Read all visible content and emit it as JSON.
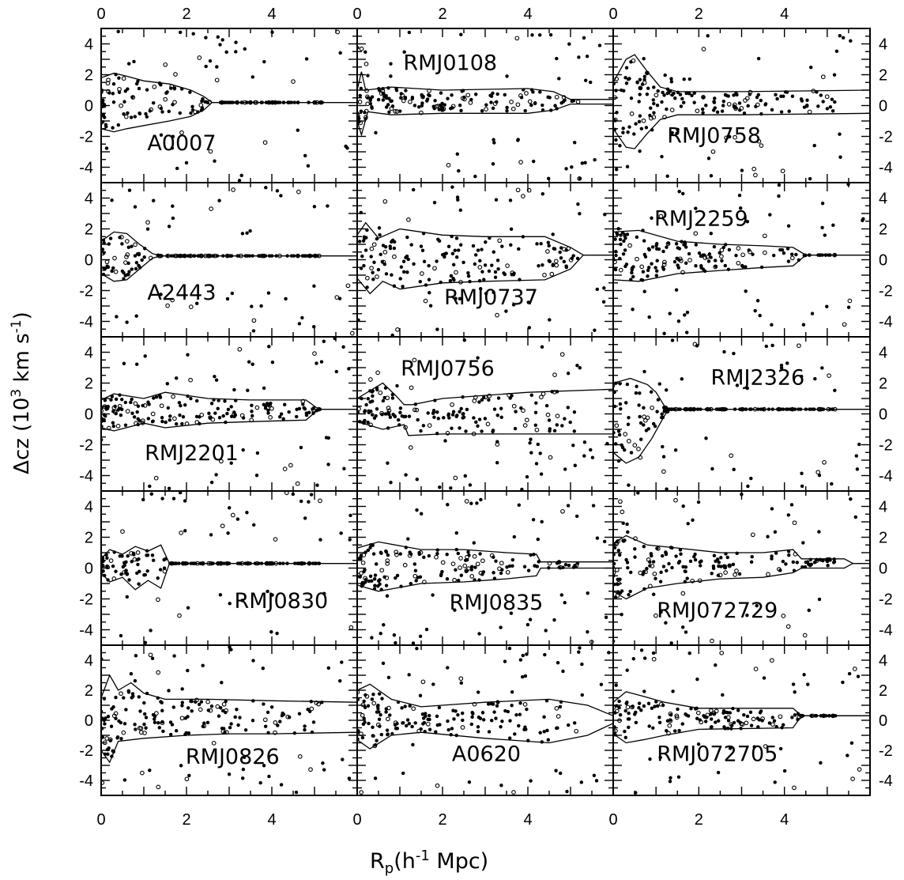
{
  "chart_data": {
    "type": "scatter",
    "layout": "5 rows x 3 columns of panels",
    "xlabel": {
      "main": "R",
      "sub": "p",
      "rest": "(h",
      "sup": "-1",
      "tail": " Mpc)"
    },
    "ylabel": {
      "main": "Δcz  (10",
      "sup1": "3",
      "mid": " km s",
      "sup2": "-1",
      "tail": ")"
    },
    "xlim": [
      0,
      6
    ],
    "ylim": [
      -5,
      5
    ],
    "x_tick_labels": [
      "0",
      "2",
      "4"
    ],
    "y_tick_labels": [
      "4",
      "2",
      "0",
      "-2",
      "-4"
    ],
    "panels": [
      {
        "name": "A0007",
        "caustic_upper": [
          [
            0,
            1.8
          ],
          [
            0.3,
            2.1
          ],
          [
            0.6,
            1.9
          ],
          [
            1,
            1.6
          ],
          [
            1.6,
            1.4
          ],
          [
            2.1,
            1.0
          ],
          [
            2.4,
            0.6
          ],
          [
            2.6,
            0.2
          ],
          [
            6,
            0.2
          ]
        ],
        "caustic_lower": [
          [
            0,
            -1.5
          ],
          [
            0.3,
            -1.7
          ],
          [
            0.6,
            -1.5
          ],
          [
            1,
            -1.3
          ],
          [
            1.6,
            -1.0
          ],
          [
            2.1,
            -0.7
          ],
          [
            2.4,
            -0.3
          ],
          [
            2.6,
            0.2
          ],
          [
            6,
            0.2
          ]
        ]
      },
      {
        "name": "RMJ0108",
        "caustic_upper": [
          [
            0,
            1.0
          ],
          [
            0.1,
            2.2
          ],
          [
            0.2,
            1.0
          ],
          [
            0.8,
            1.2
          ],
          [
            2,
            1.0
          ],
          [
            4,
            1.1
          ],
          [
            4.6,
            0.9
          ],
          [
            5,
            0.4
          ],
          [
            6,
            0.4
          ]
        ],
        "caustic_lower": [
          [
            0,
            -1.0
          ],
          [
            0.1,
            -1.9
          ],
          [
            0.25,
            -0.4
          ],
          [
            0.8,
            -0.6
          ],
          [
            2,
            -0.5
          ],
          [
            4,
            -0.5
          ],
          [
            4.6,
            -0.3
          ],
          [
            5,
            0.1
          ],
          [
            6,
            0.1
          ]
        ]
      },
      {
        "name": "RMJ0758",
        "caustic_upper": [
          [
            0,
            1.5
          ],
          [
            0.3,
            3.0
          ],
          [
            0.5,
            3.3
          ],
          [
            0.8,
            2.2
          ],
          [
            1.1,
            1.2
          ],
          [
            1.5,
            0.9
          ],
          [
            3,
            0.9
          ],
          [
            6,
            1.0
          ]
        ],
        "caustic_lower": [
          [
            0,
            -1.5
          ],
          [
            0.3,
            -2.7
          ],
          [
            0.5,
            -2.8
          ],
          [
            0.8,
            -1.8
          ],
          [
            1.1,
            -0.9
          ],
          [
            1.5,
            -0.6
          ],
          [
            3,
            -0.6
          ],
          [
            6,
            -0.5
          ]
        ]
      },
      {
        "name": "A2443",
        "caustic_upper": [
          [
            0,
            1.2
          ],
          [
            0.3,
            1.8
          ],
          [
            0.6,
            1.7
          ],
          [
            0.9,
            1.0
          ],
          [
            1.2,
            0.4
          ],
          [
            1.4,
            0.25
          ],
          [
            6,
            0.25
          ]
        ],
        "caustic_lower": [
          [
            0,
            -0.9
          ],
          [
            0.3,
            -1.4
          ],
          [
            0.6,
            -1.3
          ],
          [
            0.9,
            -0.6
          ],
          [
            1.2,
            0.1
          ],
          [
            1.4,
            0.25
          ],
          [
            6,
            0.25
          ]
        ]
      },
      {
        "name": "RMJ0737",
        "caustic_upper": [
          [
            0,
            1.6
          ],
          [
            0.2,
            2.4
          ],
          [
            0.5,
            1.4
          ],
          [
            1,
            2.0
          ],
          [
            2,
            1.6
          ],
          [
            3,
            1.5
          ],
          [
            4.4,
            1.5
          ],
          [
            5,
            0.8
          ],
          [
            5.3,
            0.3
          ],
          [
            6,
            0.3
          ]
        ],
        "caustic_lower": [
          [
            0,
            -1.2
          ],
          [
            0.3,
            -2.2
          ],
          [
            0.6,
            -1.4
          ],
          [
            1,
            -1.9
          ],
          [
            2,
            -1.5
          ],
          [
            3,
            -1.4
          ],
          [
            4.4,
            -1.3
          ],
          [
            5,
            -0.6
          ],
          [
            5.3,
            0.3
          ],
          [
            6,
            0.3
          ]
        ]
      },
      {
        "name": "RMJ2259",
        "caustic_upper": [
          [
            0,
            1.8
          ],
          [
            0.6,
            1.9
          ],
          [
            1.5,
            1.2
          ],
          [
            2.5,
            1.0
          ],
          [
            3.5,
            0.9
          ],
          [
            4.2,
            0.8
          ],
          [
            4.5,
            0.3
          ],
          [
            6,
            0.3
          ]
        ],
        "caustic_lower": [
          [
            0,
            -1.3
          ],
          [
            0.6,
            -1.4
          ],
          [
            1.5,
            -0.9
          ],
          [
            2.5,
            -0.7
          ],
          [
            3.5,
            -0.5
          ],
          [
            4.2,
            -0.4
          ],
          [
            4.5,
            0.3
          ],
          [
            6,
            0.3
          ]
        ]
      },
      {
        "name": "RMJ2201",
        "caustic_upper": [
          [
            0,
            0.9
          ],
          [
            0.3,
            1.3
          ],
          [
            1,
            1.0
          ],
          [
            1.5,
            1.4
          ],
          [
            2.5,
            1.0
          ],
          [
            3.5,
            0.9
          ],
          [
            4.8,
            0.9
          ],
          [
            5.1,
            0.3
          ],
          [
            6,
            0.3
          ]
        ],
        "caustic_lower": [
          [
            0,
            -0.9
          ],
          [
            0.3,
            -1.1
          ],
          [
            1,
            -0.6
          ],
          [
            1.5,
            -0.9
          ],
          [
            2.5,
            -0.6
          ],
          [
            3.5,
            -0.5
          ],
          [
            4.8,
            -0.4
          ],
          [
            5.1,
            0.3
          ],
          [
            6,
            0.3
          ]
        ]
      },
      {
        "name": "RMJ0756",
        "caustic_upper": [
          [
            0,
            1.0
          ],
          [
            0.6,
            2.0
          ],
          [
            0.9,
            1.2
          ],
          [
            1.1,
            0.6
          ],
          [
            1.3,
            0.6
          ],
          [
            2,
            1.0
          ],
          [
            4,
            1.4
          ],
          [
            6,
            1.6
          ]
        ],
        "caustic_lower": [
          [
            0,
            -0.5
          ],
          [
            0.6,
            -1.0
          ],
          [
            1.1,
            -0.7
          ],
          [
            1.2,
            -1.4
          ],
          [
            2,
            -1.3
          ],
          [
            4,
            -1.3
          ],
          [
            6,
            -1.3
          ]
        ]
      },
      {
        "name": "RMJ2326",
        "caustic_upper": [
          [
            0,
            2.0
          ],
          [
            0.4,
            2.3
          ],
          [
            0.8,
            1.9
          ],
          [
            1.0,
            1.4
          ],
          [
            1.2,
            0.5
          ],
          [
            1.3,
            0.3
          ],
          [
            6,
            0.3
          ]
        ],
        "caustic_lower": [
          [
            0,
            -2.5
          ],
          [
            0.3,
            -3.2
          ],
          [
            0.6,
            -2.8
          ],
          [
            0.9,
            -1.6
          ],
          [
            1.2,
            -0.1
          ],
          [
            1.3,
            0.3
          ],
          [
            6,
            0.3
          ]
        ]
      },
      {
        "name": "RMJ0830",
        "caustic_upper": [
          [
            0,
            0.6
          ],
          [
            0.2,
            1.2
          ],
          [
            0.5,
            0.9
          ],
          [
            0.8,
            1.4
          ],
          [
            1.1,
            1.1
          ],
          [
            1.4,
            1.5
          ],
          [
            1.6,
            0.3
          ],
          [
            6,
            0.3
          ]
        ],
        "caustic_lower": [
          [
            0,
            -0.3
          ],
          [
            0.2,
            -0.9
          ],
          [
            0.5,
            -0.6
          ],
          [
            0.8,
            -1.4
          ],
          [
            1.1,
            -0.8
          ],
          [
            1.4,
            -1.3
          ],
          [
            1.6,
            0.3
          ],
          [
            6,
            0.3
          ]
        ]
      },
      {
        "name": "RMJ0835",
        "caustic_upper": [
          [
            0,
            1.3
          ],
          [
            0.5,
            1.7
          ],
          [
            1.5,
            1.2
          ],
          [
            2.5,
            1.2
          ],
          [
            3.5,
            1.0
          ],
          [
            4.2,
            0.9
          ],
          [
            4.3,
            0.4
          ],
          [
            6,
            0.4
          ]
        ],
        "caustic_lower": [
          [
            0,
            -1.1
          ],
          [
            0.5,
            -1.5
          ],
          [
            1.5,
            -1.0
          ],
          [
            2.5,
            -0.9
          ],
          [
            3.5,
            -0.7
          ],
          [
            4.2,
            -0.5
          ],
          [
            4.3,
            0.0
          ],
          [
            6,
            0.0
          ]
        ]
      },
      {
        "name": "RMJ072729",
        "caustic_upper": [
          [
            0,
            1.6
          ],
          [
            0.3,
            2.1
          ],
          [
            0.8,
            1.5
          ],
          [
            1.5,
            1.3
          ],
          [
            2.5,
            1.0
          ],
          [
            3.5,
            1.0
          ],
          [
            4.2,
            1.2
          ],
          [
            4.4,
            0.6
          ],
          [
            5.4,
            0.6
          ],
          [
            5.6,
            0.3
          ],
          [
            6,
            0.3
          ]
        ],
        "caustic_lower": [
          [
            0,
            -1.5
          ],
          [
            0.3,
            -2.0
          ],
          [
            0.8,
            -1.3
          ],
          [
            1.5,
            -1.0
          ],
          [
            2.5,
            -0.7
          ],
          [
            3.5,
            -0.6
          ],
          [
            4.2,
            -0.3
          ],
          [
            4.4,
            0.0
          ],
          [
            5.4,
            0.0
          ],
          [
            5.6,
            0.3
          ],
          [
            6,
            0.3
          ]
        ]
      },
      {
        "name": "RMJ0826",
        "caustic_upper": [
          [
            0,
            1.5
          ],
          [
            0.2,
            3.0
          ],
          [
            0.4,
            2.0
          ],
          [
            0.7,
            2.5
          ],
          [
            1,
            1.8
          ],
          [
            1.5,
            1.4
          ],
          [
            2.5,
            1.4
          ],
          [
            4,
            1.3
          ],
          [
            6,
            1.2
          ]
        ],
        "caustic_lower": [
          [
            0,
            -2.0
          ],
          [
            0.2,
            -2.8
          ],
          [
            0.4,
            -1.4
          ],
          [
            1,
            -1.2
          ],
          [
            2,
            -1.0
          ],
          [
            3,
            -0.9
          ],
          [
            4,
            -0.9
          ],
          [
            6,
            -0.8
          ]
        ]
      },
      {
        "name": "A0620",
        "caustic_upper": [
          [
            0,
            2.0
          ],
          [
            0.3,
            2.4
          ],
          [
            0.8,
            1.4
          ],
          [
            1.5,
            0.9
          ],
          [
            3,
            1.2
          ],
          [
            4.5,
            1.4
          ],
          [
            5.4,
            1.0
          ],
          [
            6,
            0.3
          ]
        ],
        "caustic_lower": [
          [
            0,
            -1.3
          ],
          [
            0.3,
            -1.9
          ],
          [
            0.8,
            -1.0
          ],
          [
            1.5,
            -0.8
          ],
          [
            3,
            -1.2
          ],
          [
            4.5,
            -1.5
          ],
          [
            5.4,
            -1.0
          ],
          [
            6,
            -0.2
          ]
        ]
      },
      {
        "name": "RMJ072705",
        "caustic_upper": [
          [
            0,
            1.2
          ],
          [
            0.3,
            1.9
          ],
          [
            0.7,
            1.6
          ],
          [
            1.2,
            1.2
          ],
          [
            2,
            0.8
          ],
          [
            4.2,
            0.8
          ],
          [
            4.4,
            0.3
          ],
          [
            6,
            0.3
          ]
        ],
        "caustic_lower": [
          [
            0,
            -0.9
          ],
          [
            0.3,
            -1.5
          ],
          [
            0.7,
            -1.3
          ],
          [
            1.2,
            -1.0
          ],
          [
            2,
            -0.6
          ],
          [
            4.2,
            -0.5
          ],
          [
            4.4,
            0.3
          ],
          [
            6,
            0.3
          ]
        ]
      }
    ]
  }
}
